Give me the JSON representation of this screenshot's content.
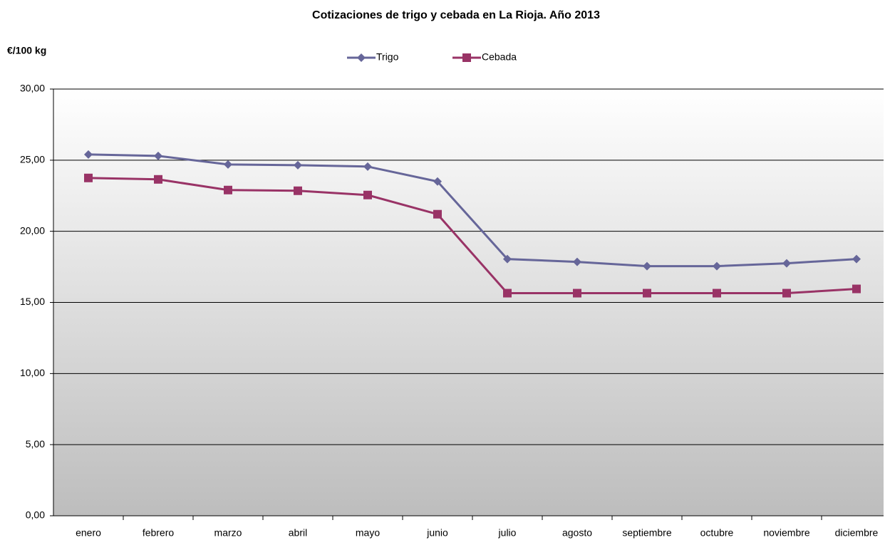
{
  "chart_data": {
    "type": "line",
    "title": "Cotizaciones de trigo y cebada en La Rioja. Año 2013",
    "y_label": "€/100 kg",
    "categories": [
      "enero",
      "febrero",
      "marzo",
      "abril",
      "mayo",
      "junio",
      "julio",
      "agosto",
      "septiembre",
      "octubre",
      "noviembre",
      "diciembre"
    ],
    "series": [
      {
        "name": "Trigo",
        "color": "#666699",
        "marker": "diamond",
        "values": [
          25.4,
          25.3,
          24.7,
          24.65,
          24.55,
          23.5,
          18.05,
          17.85,
          17.55,
          17.55,
          17.75,
          18.05
        ]
      },
      {
        "name": "Cebada",
        "color": "#993366",
        "marker": "square",
        "values": [
          23.75,
          23.65,
          22.9,
          22.85,
          22.55,
          21.2,
          15.65,
          15.65,
          15.65,
          15.65,
          15.65,
          15.95
        ]
      }
    ],
    "ylim": [
      0,
      30
    ],
    "yticks": [
      {
        "value": 0,
        "label": "0,00"
      },
      {
        "value": 5,
        "label": "5,00"
      },
      {
        "value": 10,
        "label": "10,00"
      },
      {
        "value": 15,
        "label": "15,00"
      },
      {
        "value": 20,
        "label": "20,00"
      },
      {
        "value": 25,
        "label": "25,00"
      },
      {
        "value": 30,
        "label": "30,00"
      }
    ],
    "grid": true,
    "legend": "top"
  }
}
